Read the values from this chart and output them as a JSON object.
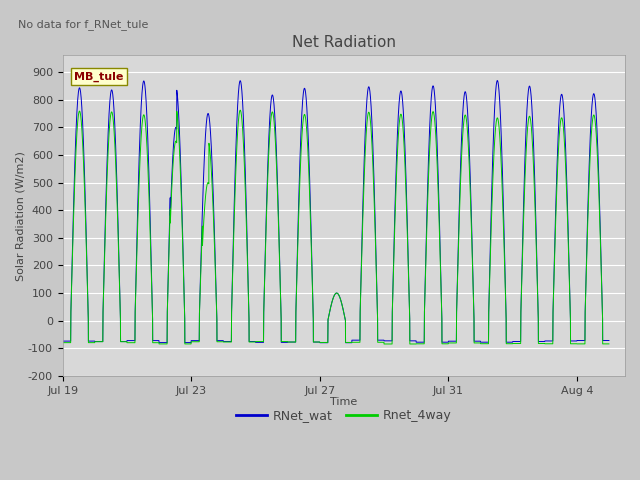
{
  "title": "Net Radiation",
  "xlabel": "Time",
  "ylabel": "Solar Radiation (W/m2)",
  "top_left_text": "No data for f_RNet_tule",
  "legend_box_text": "MB_tule",
  "legend_entries": [
    "RNet_wat",
    "Rnet_4way"
  ],
  "legend_colors": [
    "#0000cc",
    "#00cc00"
  ],
  "ylim": [
    -200,
    960
  ],
  "yticks": [
    -200,
    -100,
    0,
    100,
    200,
    300,
    400,
    500,
    600,
    700,
    800,
    900
  ],
  "xtick_labels": [
    "Jul 19",
    "Jul 23",
    "Jul 27",
    "Jul 31",
    "Aug 4"
  ],
  "xtick_positions": [
    0,
    4,
    8,
    12,
    16
  ],
  "xlim": [
    0,
    17.5
  ],
  "fig_bg_color": "#c8c8c8",
  "plot_bg_color": "#d8d8d8",
  "grid_color": "#ffffff",
  "num_days": 17
}
